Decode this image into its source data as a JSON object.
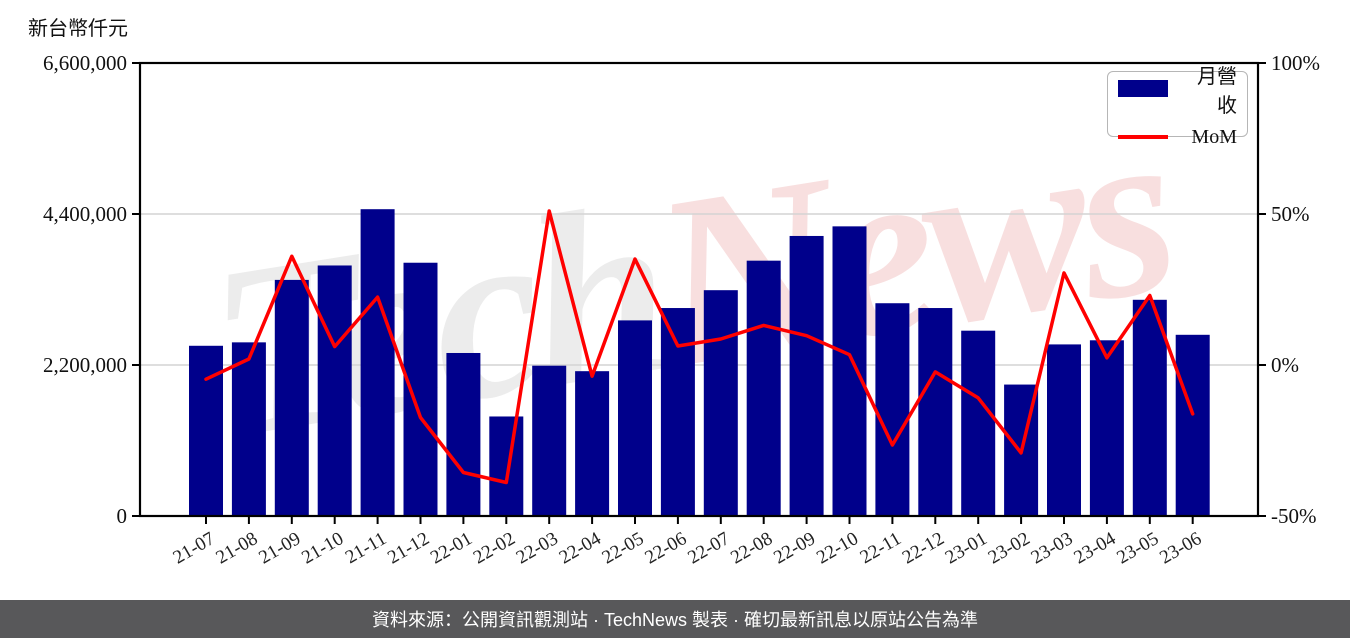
{
  "header": {
    "unit_label": "新台幣仟元"
  },
  "legend": {
    "items": [
      {
        "label": "月營收",
        "type": "bar",
        "color": "#00008B"
      },
      {
        "label": "MoM",
        "type": "line",
        "color": "#FF0000"
      }
    ]
  },
  "watermark": {
    "part1": "Tech",
    "part2": "News",
    "gray": "rgba(110,110,110,0.13)",
    "red": "rgba(205,30,30,0.14)"
  },
  "footer": {
    "text": "資料來源：公開資訊觀測站 · TechNews 製表 · 確切最新訊息以原站公告為準"
  },
  "chart_data": {
    "type": "bar+line combo",
    "title": "",
    "categories": [
      "21-07",
      "21-08",
      "21-09",
      "21-10",
      "21-11",
      "21-12",
      "22-01",
      "22-02",
      "22-03",
      "22-04",
      "22-05",
      "22-06",
      "22-07",
      "22-08",
      "22-09",
      "22-10",
      "22-11",
      "22-12",
      "23-01",
      "23-02",
      "23-03",
      "23-04",
      "23-05",
      "23-06"
    ],
    "series": [
      {
        "name": "月營收",
        "type": "bar",
        "axis": "left",
        "color": "#00008B",
        "values": [
          2480000,
          2530000,
          3440000,
          3650000,
          4470000,
          3690000,
          2375000,
          1450000,
          2190000,
          2110000,
          2850000,
          3030000,
          3290000,
          3720000,
          4080000,
          4220000,
          3100000,
          3030000,
          2700000,
          1915000,
          2500000,
          2560000,
          3150000,
          2640000
        ]
      },
      {
        "name": "MoM",
        "type": "line",
        "axis": "right",
        "color": "#FF0000",
        "values": [
          -4.7,
          2.0,
          36.0,
          6.1,
          22.5,
          -17.4,
          -35.6,
          -38.9,
          51.0,
          -3.7,
          35.1,
          6.3,
          8.6,
          13.1,
          9.7,
          3.4,
          -26.5,
          -2.3,
          -10.9,
          -29.1,
          30.5,
          2.4,
          23.0,
          -16.2
        ]
      }
    ],
    "left_axis": {
      "label": "新台幣仟元",
      "min": 0,
      "max": 6600000,
      "tick_values": [
        0,
        2200000,
        4400000,
        6600000
      ],
      "tick_labels": [
        "0",
        "2,200,000",
        "4,400,000",
        "6,600,000"
      ]
    },
    "right_axis": {
      "label": "",
      "min": -50,
      "max": 100,
      "tick_values": [
        -50,
        0,
        50,
        100
      ],
      "tick_labels": [
        "-50%",
        "0%",
        "50%",
        "100%"
      ]
    },
    "grid": {
      "horizontal_at": [
        2200000,
        4400000
      ],
      "color": "#d4d4d4"
    },
    "legend_position": "top-right-inside",
    "x_label_rotation_deg": -30
  }
}
